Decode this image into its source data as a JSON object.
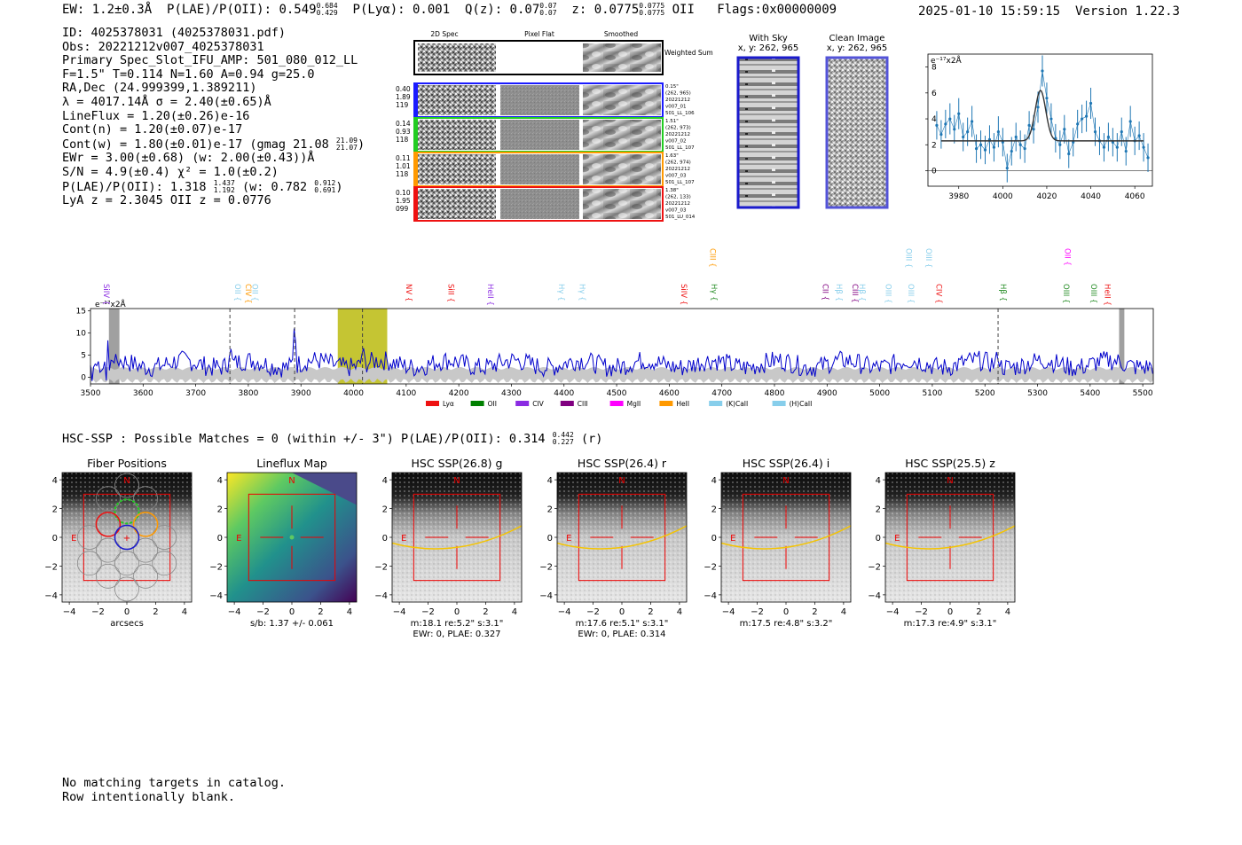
{
  "header": {
    "ew_label": "EW: 1.2±0.3Å",
    "plae_label": "P(LAE)/P(OII): 0.549",
    "plae_hi": "0.684",
    "plae_lo": "0.429",
    "plya_label": "P(Lyα): 0.001",
    "qz_label": "Q(z): 0.07",
    "qz_hi": "0.07",
    "qz_lo": "0.07",
    "z_label": "z: 0.0775",
    "z_hi": "0.0775",
    "z_lo": "0.0775",
    "z_line": "OII",
    "flags": "Flags:0x00000009",
    "datetime": "2025-01-10 15:59:15",
    "version": "Version 1.22.3"
  },
  "info": {
    "id": "ID: 4025378031 (4025378031.pdf)",
    "obs": "Obs: 20221212v007_4025378031",
    "primary": "Primary Spec_Slot_IFU_AMP: 501_080_012_LL",
    "fit": "F=1.5\"  T=0.114  N=1.60  A=0.94  g=25.0",
    "radec": "RA,Dec (24.999399,1.389211)",
    "lambda": "λ = 4017.14Å  σ = 2.40(±0.65)Å",
    "lineflux": "LineFlux = 1.20(±0.26)e-16",
    "contn": "Cont(n) = 1.20(±0.07)e-17",
    "contw": "Cont(w) = 1.80(±0.01)e-17 (gmag 21.08",
    "contw_hi": "21.09",
    "contw_lo": "21.07",
    "contw_end": ")",
    "ewr": "EWr = 3.00(±0.68) (w: 2.00(±0.43))Å",
    "sn": "S/N = 4.9(±0.4)  χ² = 1.0(±0.2)",
    "plae": "P(LAE)/P(OII): 1.318",
    "plae_hi": "1.437",
    "plae_lo": "1.192",
    "plae_w": "(w: 0.782",
    "plae_w_hi": "0.912",
    "plae_w_lo": "0.691",
    "plae_w_end": ")",
    "lya_oii": "LyA z = 2.3045  OII z = 0.0776"
  },
  "cutouts": {
    "col_headers": [
      "2D Spec",
      "Pixel Flat",
      "Smoothed"
    ],
    "weighted_sum": "Weighted Sum",
    "rows": [
      {
        "color": "#1a1aff",
        "left": [
          "0.40",
          "1.89",
          "119"
        ],
        "right": [
          "0.15\"",
          "(262, 965)",
          "20221212",
          "v007_01",
          "501_LL_106"
        ]
      },
      {
        "color": "#22cc22",
        "left": [
          "0.14",
          "0.93",
          "118"
        ],
        "right": [
          "1.51\"",
          "(262, 973)",
          "20221212",
          "v007_02",
          "501_LL_107"
        ]
      },
      {
        "color": "#ff9900",
        "left": [
          "0.11",
          "1.01",
          "118"
        ],
        "right": [
          "1.63\"",
          "(262, 974)",
          "20221212",
          "v007_03",
          "501_LL_107"
        ]
      },
      {
        "color": "#ee1111",
        "left": [
          "0.10",
          "1.95",
          "099"
        ],
        "right": [
          "1.38\"",
          "(262, 133)",
          "20221212",
          "v007_03",
          "501_LU_014"
        ]
      }
    ],
    "with_sky": {
      "title": "With Sky",
      "coords": "x, y: 262, 965"
    },
    "clean": {
      "title": "Clean Image",
      "coords": "x, y: 262, 965"
    }
  },
  "zoom_chart": {
    "type": "line",
    "ylabel": "e⁻¹⁷x2Å",
    "xlim": [
      3966,
      4068
    ],
    "ylim": [
      -1.2,
      9
    ],
    "xticks": [
      3980,
      4000,
      4020,
      4040,
      4060
    ],
    "yticks": [
      0,
      2,
      4,
      6,
      8
    ],
    "x": [
      3970,
      3972,
      3974,
      3976,
      3978,
      3980,
      3982,
      3984,
      3986,
      3988,
      3990,
      3992,
      3994,
      3996,
      3998,
      4000,
      4002,
      4004,
      4006,
      4008,
      4010,
      4012,
      4014,
      4016,
      4018,
      4020,
      4022,
      4024,
      4026,
      4028,
      4030,
      4032,
      4034,
      4036,
      4038,
      4040,
      4042,
      4044,
      4046,
      4048,
      4050,
      4052,
      4054,
      4056,
      4058,
      4060,
      4062,
      4064,
      4066
    ],
    "y": [
      3.5,
      2.8,
      3.6,
      4.0,
      3.2,
      4.4,
      2.6,
      3.0,
      3.8,
      1.7,
      2.0,
      1.6,
      2.4,
      1.8,
      3.0,
      2.2,
      0.2,
      1.5,
      2.6,
      2.0,
      1.7,
      3.5,
      3.2,
      4.9,
      7.7,
      5.6,
      4.0,
      2.5,
      2.0,
      3.2,
      1.3,
      2.2,
      3.6,
      4.0,
      4.2,
      5.2,
      3.0,
      2.3,
      1.8,
      2.6,
      2.2,
      1.8,
      3.0,
      1.5,
      3.8,
      2.3,
      2.7,
      1.8,
      1.0
    ],
    "err": [
      1.1,
      1.1,
      1.1,
      1.2,
      1.1,
      1.2,
      1.1,
      1.1,
      1.2,
      1.1,
      1.1,
      1.1,
      1.1,
      1.1,
      1.2,
      1.1,
      1.1,
      1.1,
      1.1,
      1.1,
      1.1,
      1.1,
      1.1,
      1.2,
      1.2,
      1.2,
      1.2,
      1.1,
      1.1,
      1.1,
      1.1,
      1.1,
      1.1,
      1.1,
      1.2,
      1.2,
      1.1,
      1.1,
      1.1,
      1.1,
      1.1,
      1.1,
      1.1,
      1.1,
      1.2,
      1.1,
      1.1,
      1.1,
      1.1
    ],
    "fit": {
      "continuum": 2.3,
      "center": 4017.14,
      "sigma": 2.4,
      "amplitude": 3.9
    }
  },
  "chart_data": [
    {
      "type": "line",
      "title": "",
      "ylabel": "e⁻¹⁷x2Å",
      "xlim": [
        3500,
        5520
      ],
      "ylim": [
        -1.5,
        15.5
      ],
      "xticks": [
        3500,
        3600,
        3700,
        3800,
        3900,
        4000,
        4100,
        4200,
        4300,
        4400,
        4500,
        4600,
        4700,
        4800,
        4900,
        5000,
        5100,
        5200,
        5300,
        5400,
        5500
      ],
      "yticks": [
        0,
        5,
        10,
        15
      ],
      "series": [
        {
          "name": "flux",
          "color": "#0000cc"
        },
        {
          "name": "error",
          "color": "#bbbbbb"
        }
      ],
      "highlights": [
        {
          "x0": 3970,
          "x1": 4064,
          "color": "#b7b700"
        },
        {
          "x0": 3535,
          "x1": 3555,
          "color": "#888888"
        },
        {
          "x0": 5455,
          "x1": 5465,
          "color": "#888888"
        }
      ],
      "dashed_lines": [
        3765,
        3888,
        4017,
        5225
      ],
      "lines": [
        {
          "label": "SiIV",
          "x": 3525,
          "row": 1,
          "color": "#8a2be2"
        },
        {
          "label": "OII",
          "x": 3775,
          "row": 1,
          "color": "#87ceeb"
        },
        {
          "label": "CIV",
          "x": 3795,
          "row": 1,
          "color": "#ff9900"
        },
        {
          "label": "OII",
          "x": 3808,
          "row": 1,
          "color": "#87ceeb"
        },
        {
          "label": "NV",
          "x": 4100,
          "row": 1,
          "color": "#ee1111"
        },
        {
          "label": "SiII",
          "x": 4180,
          "row": 1,
          "color": "#ee1111"
        },
        {
          "label": "HeII",
          "x": 4255,
          "row": 1,
          "color": "#8a2be2"
        },
        {
          "label": "Hγ",
          "x": 4390,
          "row": 1,
          "color": "#87ceeb"
        },
        {
          "label": "Hγ",
          "x": 4430,
          "row": 1,
          "color": "#87ceeb"
        },
        {
          "label": "SiIV",
          "x": 4623,
          "row": 1,
          "color": "#ee1111"
        },
        {
          "label": "Hγ",
          "x": 4680,
          "row": 1,
          "color": "#228b22"
        },
        {
          "label": "CIII",
          "x": 4678,
          "row": 0,
          "color": "#ff9900"
        },
        {
          "label": "CII",
          "x": 4892,
          "row": 1,
          "color": "#800080"
        },
        {
          "label": "Hβ",
          "x": 4918,
          "row": 1,
          "color": "#87ceeb"
        },
        {
          "label": "CIII",
          "x": 4948,
          "row": 1,
          "color": "#800080"
        },
        {
          "label": "Hβ",
          "x": 4962,
          "row": 1,
          "color": "#87ceeb"
        },
        {
          "label": "OIII",
          "x": 5012,
          "row": 1,
          "color": "#87ceeb"
        },
        {
          "label": "OIII",
          "x": 5055,
          "row": 1,
          "color": "#87ceeb"
        },
        {
          "label": "OIII",
          "x": 5050,
          "row": 0,
          "color": "#87ceeb"
        },
        {
          "label": "CIV",
          "x": 5108,
          "row": 1,
          "color": "#ee1111"
        },
        {
          "label": "OIII",
          "x": 5088,
          "row": 0,
          "color": "#87ceeb"
        },
        {
          "label": "Hβ",
          "x": 5230,
          "row": 1,
          "color": "#228b22"
        },
        {
          "label": "OII",
          "x": 5352,
          "row": 0,
          "color": "#ff00ff"
        },
        {
          "label": "OIII",
          "x": 5350,
          "row": 1,
          "color": "#228b22"
        },
        {
          "label": "OIII",
          "x": 5402,
          "row": 1,
          "color": "#228b22"
        },
        {
          "label": "HeII",
          "x": 5428,
          "row": 1,
          "color": "#ee1111"
        }
      ],
      "legend": [
        {
          "label": "Lyα",
          "color": "#ee1111"
        },
        {
          "label": "OII",
          "color": "#008000"
        },
        {
          "label": "CIV",
          "color": "#8a2be2"
        },
        {
          "label": "CIII",
          "color": "#800080"
        },
        {
          "label": "MgII",
          "color": "#ff00ff"
        },
        {
          "label": "HeII",
          "color": "#ff9900"
        },
        {
          "label": "(K)CaII",
          "color": "#87ceeb"
        },
        {
          "label": "(H)CaII",
          "color": "#87ceeb"
        }
      ]
    }
  ],
  "hsc": {
    "line": "HSC-SSP : Possible Matches = 0 (within +/- 3\")  P(LAE)/P(OII): 0.314",
    "line_hi": "0.442",
    "line_lo": "0.227",
    "line_end": "(r)",
    "panels": [
      {
        "title": "Fiber Positions",
        "cap1": "arcsecs",
        "cap2": ""
      },
      {
        "title": "Lineflux Map",
        "cap1": "s/b: 1.37 +/- 0.061",
        "cap2": ""
      },
      {
        "title": "HSC SSP(26.8) g",
        "cap1": "m:18.1  re:5.2\"  s:3.1\"",
        "cap2": "EWr: 0, PLAE: 0.327"
      },
      {
        "title": "HSC SSP(26.4) r",
        "cap1": "m:17.6  re:5.1\"  s:3.1\"",
        "cap2": "EWr: 0, PLAE: 0.314"
      },
      {
        "title": "HSC SSP(26.4) i",
        "cap1": "m:17.5  re:4.8\"  s:3.2\"",
        "cap2": ""
      },
      {
        "title": "HSC SSP(25.5) z",
        "cap1": "m:17.3  re:4.9\"  s:3.1\"",
        "cap2": ""
      }
    ],
    "ticks": [
      "−4",
      "−2",
      "0",
      "2",
      "4"
    ],
    "north": "N",
    "east": "E"
  },
  "footer": {
    "line1": "No matching targets in catalog.",
    "line2": "Row intentionally blank."
  }
}
